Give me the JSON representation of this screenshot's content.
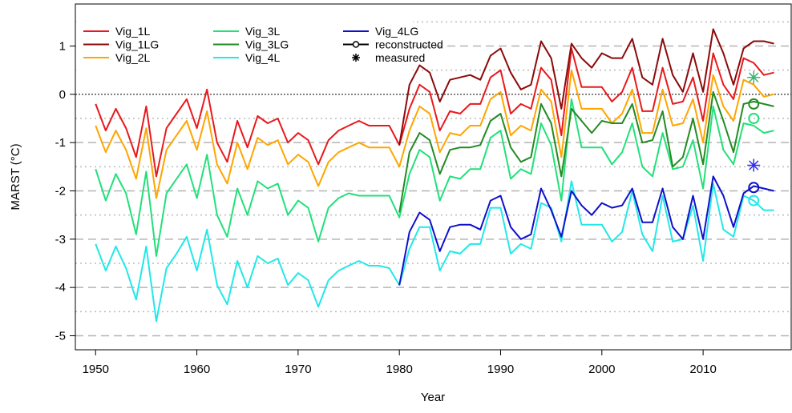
{
  "chart_data": {
    "type": "line",
    "title": null,
    "x_label": "Year",
    "y_label": "MARST (°C)",
    "x": [
      1950,
      1951,
      1952,
      1953,
      1954,
      1955,
      1956,
      1957,
      1958,
      1959,
      1960,
      1961,
      1962,
      1963,
      1964,
      1965,
      1966,
      1967,
      1968,
      1969,
      1970,
      1971,
      1972,
      1973,
      1974,
      1975,
      1976,
      1977,
      1978,
      1979,
      1980,
      1981,
      1982,
      1983,
      1984,
      1985,
      1986,
      1987,
      1988,
      1989,
      1990,
      1991,
      1992,
      1993,
      1994,
      1995,
      1996,
      1997,
      1998,
      1999,
      2000,
      2001,
      2002,
      2003,
      2004,
      2005,
      2006,
      2007,
      2008,
      2009,
      2010,
      2011,
      2012,
      2013,
      2014,
      2015,
      2016,
      2017
    ],
    "series": [
      {
        "name": "Vig_1L",
        "color": "#e8191c",
        "values": [
          -0.2,
          -0.75,
          -0.3,
          -0.7,
          -1.3,
          -0.25,
          -1.7,
          -0.7,
          -0.4,
          -0.1,
          -0.7,
          0.1,
          -1.0,
          -1.4,
          -0.55,
          -1.1,
          -0.45,
          -0.6,
          -0.5,
          -1.0,
          -0.8,
          -0.95,
          -1.45,
          -0.95,
          -0.75,
          -0.65,
          -0.55,
          -0.65,
          -0.65,
          -0.65,
          -1.05,
          -0.3,
          0.2,
          0.05,
          -0.75,
          -0.35,
          -0.4,
          -0.2,
          -0.2,
          0.35,
          0.5,
          -0.4,
          -0.2,
          -0.3,
          0.55,
          0.3,
          -0.85,
          0.95,
          0.15,
          0.15,
          0.15,
          -0.15,
          0.05,
          0.55,
          -0.35,
          -0.35,
          0.55,
          -0.2,
          -0.15,
          0.35,
          -0.55,
          0.85,
          0.2,
          -0.1,
          0.75,
          0.65,
          0.4,
          0.45
        ]
      },
      {
        "name": "Vig_1LG",
        "color": "#8b0a0a",
        "values": [
          null,
          null,
          null,
          null,
          null,
          null,
          null,
          null,
          null,
          null,
          null,
          null,
          null,
          null,
          null,
          null,
          null,
          null,
          null,
          null,
          null,
          null,
          null,
          null,
          null,
          null,
          null,
          null,
          null,
          null,
          -1.05,
          0.2,
          0.6,
          0.45,
          -0.15,
          0.3,
          0.35,
          0.4,
          0.3,
          0.8,
          0.95,
          0.45,
          0.1,
          0.2,
          1.1,
          0.75,
          -0.3,
          1.05,
          0.75,
          0.55,
          0.85,
          0.75,
          0.75,
          1.15,
          0.35,
          0.2,
          1.15,
          0.4,
          0.05,
          0.85,
          0.05,
          1.35,
          0.85,
          0.2,
          0.95,
          1.1,
          1.1,
          1.05
        ]
      },
      {
        "name": "Vig_2L",
        "color": "#ffa500",
        "values": [
          -0.65,
          -1.2,
          -0.75,
          -1.15,
          -1.75,
          -0.7,
          -2.15,
          -1.15,
          -0.85,
          -0.55,
          -1.15,
          -0.35,
          -1.45,
          -1.85,
          -1.0,
          -1.55,
          -0.9,
          -1.05,
          -0.95,
          -1.45,
          -1.25,
          -1.4,
          -1.9,
          -1.4,
          -1.2,
          -1.1,
          -1.0,
          -1.1,
          -1.1,
          -1.1,
          -1.5,
          -0.75,
          -0.25,
          -0.4,
          -1.2,
          -0.8,
          -0.85,
          -0.65,
          -0.65,
          -0.1,
          0.05,
          -0.85,
          -0.65,
          -0.75,
          0.1,
          -0.15,
          -1.3,
          0.5,
          -0.3,
          -0.3,
          -0.3,
          -0.6,
          -0.4,
          0.1,
          -0.8,
          -0.8,
          0.1,
          -0.65,
          -0.6,
          -0.1,
          -1.0,
          0.4,
          -0.25,
          -0.55,
          0.3,
          0.2,
          -0.05,
          0.0
        ]
      },
      {
        "name": "Vig_3L",
        "color": "#22e07a",
        "values": [
          -1.55,
          -2.2,
          -1.65,
          -2.05,
          -2.9,
          -1.6,
          -3.35,
          -2.05,
          -1.75,
          -1.45,
          -2.15,
          -1.25,
          -2.5,
          -2.95,
          -1.95,
          -2.5,
          -1.8,
          -1.95,
          -1.85,
          -2.5,
          -2.2,
          -2.35,
          -3.05,
          -2.35,
          -2.15,
          -2.05,
          -2.1,
          -2.1,
          -2.1,
          -2.1,
          -2.55,
          -1.65,
          -1.15,
          -1.3,
          -2.2,
          -1.7,
          -1.75,
          -1.55,
          -1.55,
          -0.9,
          -0.75,
          -1.75,
          -1.55,
          -1.65,
          -0.6,
          -1.05,
          -2.2,
          -0.1,
          -1.1,
          -1.1,
          -1.1,
          -1.45,
          -1.2,
          -0.6,
          -1.5,
          -1.7,
          -0.8,
          -1.55,
          -1.5,
          -0.95,
          -1.95,
          -0.25,
          -1.15,
          -1.45,
          -0.6,
          -0.65,
          -0.8,
          -0.75
        ]
      },
      {
        "name": "Vig_3LG",
        "color": "#228b22",
        "values": [
          null,
          null,
          null,
          null,
          null,
          null,
          null,
          null,
          null,
          null,
          null,
          null,
          null,
          null,
          null,
          null,
          null,
          null,
          null,
          null,
          null,
          null,
          null,
          null,
          null,
          null,
          null,
          null,
          null,
          null,
          -2.45,
          -1.2,
          -0.8,
          -0.95,
          -1.65,
          -1.15,
          -1.1,
          -1.1,
          -1.05,
          -0.55,
          -0.4,
          -1.1,
          -1.4,
          -1.3,
          -0.2,
          -0.6,
          -1.7,
          -0.3,
          -0.55,
          -0.8,
          -0.55,
          -0.6,
          -0.6,
          -0.2,
          -1.0,
          -0.95,
          -0.35,
          -1.5,
          -1.3,
          -0.5,
          -1.45,
          0.05,
          -0.55,
          -1.2,
          -0.2,
          -0.15,
          -0.2,
          -0.25
        ]
      },
      {
        "name": "Vig_4L",
        "color": "#22e8e8",
        "values": [
          -3.1,
          -3.65,
          -3.15,
          -3.6,
          -4.25,
          -3.15,
          -4.7,
          -3.6,
          -3.3,
          -2.95,
          -3.65,
          -2.8,
          -3.95,
          -4.35,
          -3.45,
          -4.0,
          -3.35,
          -3.5,
          -3.4,
          -3.95,
          -3.7,
          -3.85,
          -4.4,
          -3.85,
          -3.65,
          -3.55,
          -3.45,
          -3.55,
          -3.55,
          -3.6,
          -3.95,
          -3.2,
          -2.75,
          -2.75,
          -3.65,
          -3.25,
          -3.3,
          -3.1,
          -3.1,
          -2.35,
          -2.35,
          -3.3,
          -3.1,
          -3.2,
          -2.25,
          -2.35,
          -3.05,
          -1.8,
          -2.7,
          -2.7,
          -2.7,
          -3.05,
          -2.85,
          -2.0,
          -2.9,
          -3.25,
          -2.1,
          -3.05,
          -3.0,
          -2.3,
          -3.45,
          -1.85,
          -2.8,
          -2.95,
          -2.1,
          -2.2,
          -2.4,
          -2.4
        ]
      },
      {
        "name": "Vig_4LG",
        "color": "#1010cc",
        "values": [
          null,
          null,
          null,
          null,
          null,
          null,
          null,
          null,
          null,
          null,
          null,
          null,
          null,
          null,
          null,
          null,
          null,
          null,
          null,
          null,
          null,
          null,
          null,
          null,
          null,
          null,
          null,
          null,
          null,
          null,
          -3.95,
          -2.85,
          -2.45,
          -2.6,
          -3.25,
          -2.75,
          -2.7,
          -2.7,
          -2.8,
          -2.2,
          -2.1,
          -2.75,
          -3.0,
          -2.9,
          -1.95,
          -2.4,
          -2.95,
          -2.0,
          -2.3,
          -2.5,
          -2.25,
          -2.35,
          -2.3,
          -1.95,
          -2.65,
          -2.65,
          -1.95,
          -2.75,
          -3.0,
          -2.1,
          -3.0,
          -1.7,
          -2.1,
          -2.75,
          -2.05,
          -1.9,
          -1.95,
          -2.0
        ]
      }
    ],
    "markers": [
      {
        "name": "reconstructed",
        "shape": "circle",
        "points": [
          {
            "x": 2015,
            "y": -0.2,
            "color": "#228b22"
          },
          {
            "x": 2015,
            "y": -0.5,
            "color": "#22e07a"
          },
          {
            "x": 2015,
            "y": -1.93,
            "color": "#1010cc"
          },
          {
            "x": 2015,
            "y": -2.2,
            "color": "#22e8e8"
          }
        ]
      },
      {
        "name": "measured",
        "shape": "asterisk",
        "points": [
          {
            "x": 2015,
            "y": 0.35,
            "color": "#3cb371"
          },
          {
            "x": 2015,
            "y": -1.47,
            "color": "#3030ee"
          }
        ]
      }
    ],
    "xlim": [
      1948,
      2018.7
    ],
    "ylim": [
      -5.29,
      1.87
    ],
    "xticks": [
      1950,
      1960,
      1970,
      1980,
      1990,
      2000,
      2010
    ],
    "yticks": [
      -5,
      -4,
      -3,
      -2,
      -1,
      0,
      1
    ],
    "minor_grid": [
      -4.5,
      -3.5,
      -2.5,
      -1.5,
      -0.5,
      0.5,
      1.5
    ],
    "reference_line": 0,
    "grid": true,
    "legend": "top-left"
  }
}
